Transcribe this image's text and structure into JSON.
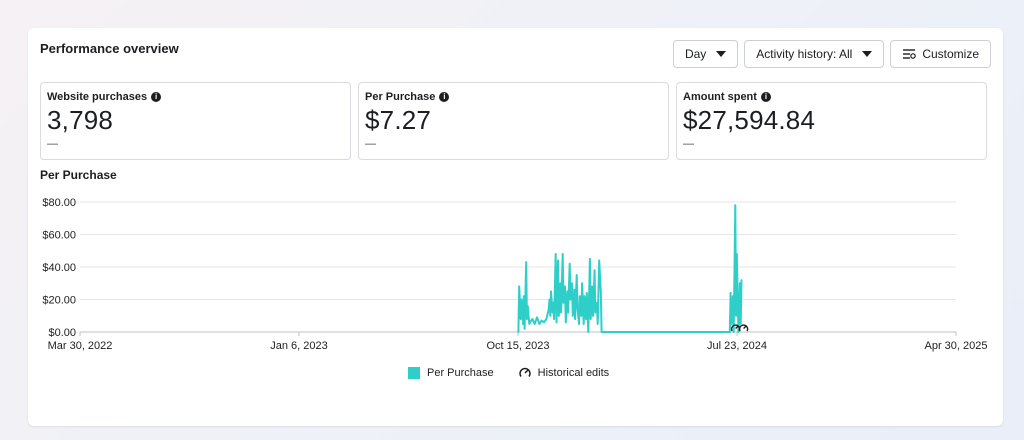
{
  "header": {
    "title": "Performance overview"
  },
  "controls": {
    "day_label": "Day",
    "activity_label": "Activity history: All",
    "customize_label": "Customize"
  },
  "metrics": [
    {
      "label": "Website purchases",
      "value": "3,798",
      "delta": "—"
    },
    {
      "label": "Per Purchase",
      "value": "$7.27",
      "delta": "—"
    },
    {
      "label": "Amount spent",
      "value": "$27,594.84",
      "delta": "—"
    }
  ],
  "colors": {
    "series": "#2ecfc9",
    "grid": "#e4e6eb"
  },
  "chart_data": {
    "type": "line",
    "title": "Per Purchase",
    "xlabel": "",
    "ylabel": "",
    "ylim": [
      0,
      80
    ],
    "yticks": [
      "$0.00",
      "$20.00",
      "$40.00",
      "$60.00",
      "$80.00"
    ],
    "xticks": [
      "Mar 30, 2022",
      "Jan 6, 2023",
      "Oct 15, 2023",
      "Jul 23, 2024",
      "Apr 30, 2025"
    ],
    "grid": true,
    "legend_placement": "bottom",
    "series": [
      {
        "name": "Per Purchase",
        "x": [
          "2023-10-15",
          "2023-10-16",
          "2023-10-18",
          "2023-10-19",
          "2023-10-21",
          "2023-10-22",
          "2023-10-23",
          "2023-10-25",
          "2023-10-26",
          "2023-10-27",
          "2023-10-29",
          "2023-10-30",
          "2023-11-02",
          "2023-11-05",
          "2023-11-08",
          "2023-11-11",
          "2023-11-14",
          "2023-11-17",
          "2023-11-20",
          "2023-11-23",
          "2023-11-24",
          "2023-11-25",
          "2023-11-26",
          "2023-11-28",
          "2023-11-29",
          "2023-11-30",
          "2023-12-02",
          "2023-12-03",
          "2023-12-05",
          "2023-12-06",
          "2023-12-08",
          "2023-12-09",
          "2023-12-11",
          "2023-12-12",
          "2023-12-14",
          "2023-12-15",
          "2023-12-17",
          "2023-12-18",
          "2023-12-20",
          "2023-12-21",
          "2023-12-23",
          "2023-12-24",
          "2023-12-26",
          "2023-12-27",
          "2023-12-29",
          "2023-12-30",
          "2024-01-01",
          "2024-01-02",
          "2024-01-04",
          "2024-01-05",
          "2024-01-07",
          "2024-01-08",
          "2024-01-10",
          "2024-01-11",
          "2024-01-13",
          "2024-01-15",
          "2024-01-16",
          "2024-01-18",
          "2024-01-19",
          "2024-01-21",
          "2024-01-22",
          "2024-01-24",
          "2024-01-25",
          "2024-01-27",
          "2024-01-29",
          "2024-01-30",
          "2024-07-13",
          "2024-07-14",
          "2024-07-15",
          "2024-07-17",
          "2024-07-18",
          "2024-07-20",
          "2024-07-21",
          "2024-07-22",
          "2024-07-23",
          "2024-07-24",
          "2024-07-25",
          "2024-07-26",
          "2024-07-27",
          "2024-07-28"
        ],
        "values": [
          0,
          28,
          8,
          20,
          5,
          22,
          2,
          43,
          8,
          16,
          5,
          6,
          8,
          5,
          9,
          5,
          7,
          6,
          8,
          14,
          20,
          10,
          25,
          12,
          18,
          8,
          48,
          6,
          44,
          10,
          30,
          12,
          48,
          18,
          28,
          6,
          25,
          12,
          42,
          20,
          30,
          10,
          26,
          8,
          35,
          15,
          5,
          22,
          10,
          30,
          5,
          22,
          8,
          24,
          0,
          45,
          8,
          28,
          10,
          38,
          12,
          18,
          5,
          44,
          25,
          0,
          0,
          24,
          5,
          22,
          0,
          78,
          10,
          48,
          25,
          0,
          10,
          30,
          5,
          32
        ]
      }
    ]
  },
  "legend": {
    "series_label": "Per Purchase",
    "historical_label": "Historical edits"
  }
}
